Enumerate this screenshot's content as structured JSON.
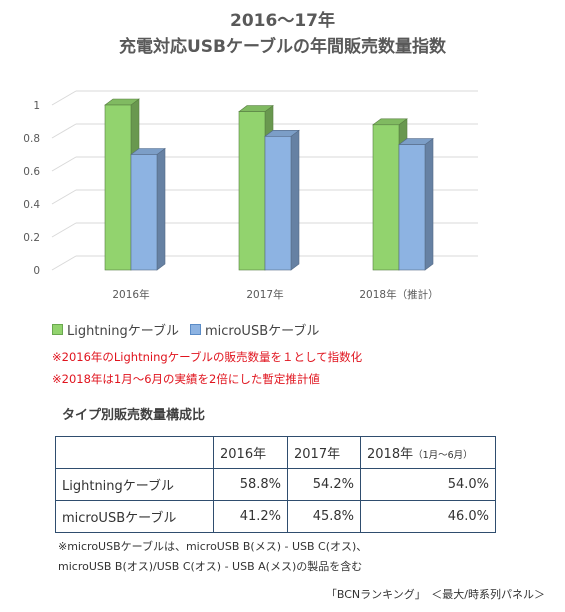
{
  "title_line1": "2016〜17年",
  "title_line2": "充電対応USBケーブルの年間販売数量指数",
  "chart_data": {
    "type": "bar",
    "categories": [
      "2016年",
      "2017年",
      "2018年（推計）"
    ],
    "series": [
      {
        "name": "Lightningケーブル",
        "values": [
          1.0,
          0.96,
          0.88
        ],
        "color": "#92d36e"
      },
      {
        "name": "microUSBケーブル",
        "values": [
          0.7,
          0.81,
          0.76
        ],
        "color": "#8db3e2"
      }
    ],
    "yticks": [
      "0",
      "0.2",
      "0.4",
      "0.6",
      "0.8",
      "1"
    ],
    "ylim": [
      0,
      1.0
    ],
    "legend": "bottom",
    "grid": true
  },
  "notes": [
    "※2016年のLightningケーブルの販売数量を１として指数化",
    "※2018年は1月〜6月の実績を2倍にした暫定推計値"
  ],
  "table": {
    "title": "タイプ別販売数量構成比",
    "headers": [
      "2016年",
      "2017年",
      "2018年",
      "（1月〜6月）"
    ],
    "rows": [
      {
        "label": "Lightningケーブル",
        "values": [
          "58.8%",
          "54.2%",
          "54.0%"
        ]
      },
      {
        "label": "microUSBケーブル",
        "values": [
          "41.2%",
          "45.8%",
          "46.0%"
        ]
      }
    ]
  },
  "footnote_lines": [
    "※microUSBケーブルは、microUSB B(メス) - USB C(オス)、",
    "microUSB B(オス)/USB C(オス) - USB A(メス)の製品を含む"
  ],
  "credit": "「BCNランキング」　＜最大/時系列パネル＞"
}
